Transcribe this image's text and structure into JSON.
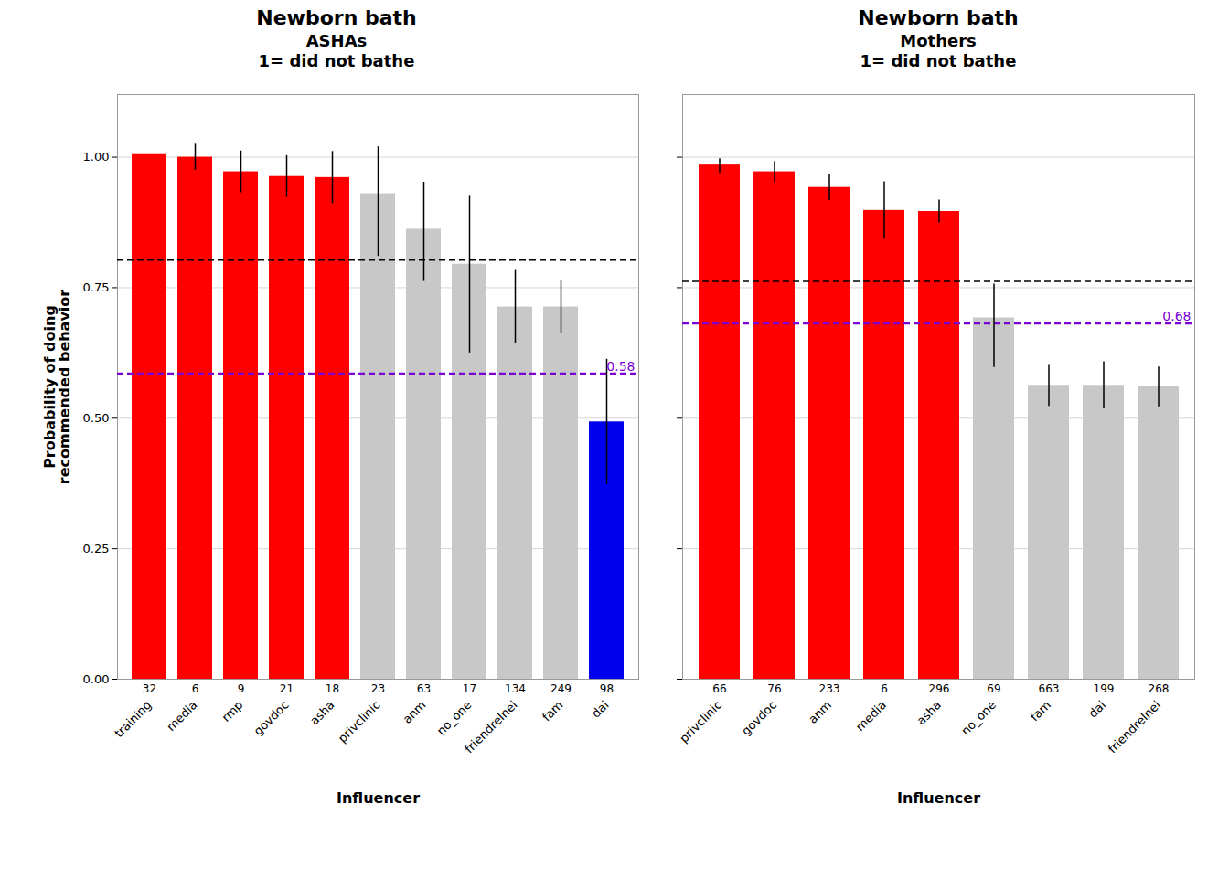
{
  "chart_data": [
    {
      "type": "bar",
      "title": "Newborn bath",
      "subtitle": "ASHAs\n1= did not bathe",
      "x_label": "Influencer",
      "y_label": "Probability of doing\nrecommended behavior",
      "categories": [
        "training",
        "media",
        "rmp",
        "govdoc",
        "asha",
        "privclinic",
        "anm",
        "no_one",
        "friendrelnei",
        "fam",
        "dai"
      ],
      "values": [
        1.005,
        1.0,
        0.972,
        0.963,
        0.961,
        0.93,
        0.862,
        0.795,
        0.713,
        0.713,
        0.493
      ],
      "error_low": [
        0.0,
        0.025,
        0.04,
        0.04,
        0.05,
        0.12,
        0.1,
        0.17,
        0.07,
        0.05,
        0.12
      ],
      "error_high": [
        0.0,
        0.025,
        0.04,
        0.04,
        0.05,
        0.09,
        0.09,
        0.13,
        0.07,
        0.05,
        0.12
      ],
      "n": [
        32,
        6,
        9,
        21,
        18,
        23,
        63,
        17,
        134,
        249,
        98
      ],
      "colors": [
        "#FF0000",
        "#FF0000",
        "#FF0000",
        "#FF0000",
        "#FF0000",
        "#C8C8C8",
        "#C8C8C8",
        "#C8C8C8",
        "#C8C8C8",
        "#C8C8C8",
        "#0000EE"
      ],
      "reference_lines": [
        {
          "value": 0.803,
          "color": "black",
          "line_style": "dashed"
        },
        {
          "value": 0.585,
          "label": "0.58",
          "color": "#7B00D4",
          "line_style": "dashed"
        }
      ],
      "ylim": [
        0,
        1.12
      ],
      "yticks": [
        {
          "value": 0,
          "label": "0.00"
        },
        {
          "value": 0.25,
          "label": "0.25"
        },
        {
          "value": 0.5,
          "label": "0.50"
        },
        {
          "value": 0.75,
          "label": "0.75"
        },
        {
          "value": 1,
          "label": "1.00"
        }
      ],
      "grid": true
    },
    {
      "type": "bar",
      "title": "Newborn bath",
      "subtitle": "Mothers\n1= did not bathe",
      "x_label": "Influencer",
      "categories": [
        "privclinic",
        "govdoc",
        "anm",
        "media",
        "asha",
        "no_one",
        "fam",
        "dai",
        "friendrelnei"
      ],
      "values": [
        0.985,
        0.972,
        0.942,
        0.898,
        0.896,
        0.692,
        0.563,
        0.563,
        0.56
      ],
      "error_low": [
        0.015,
        0.02,
        0.025,
        0.055,
        0.022,
        0.095,
        0.04,
        0.045,
        0.038
      ],
      "error_high": [
        0.012,
        0.02,
        0.025,
        0.055,
        0.022,
        0.065,
        0.04,
        0.045,
        0.038
      ],
      "n": [
        66,
        76,
        233,
        6,
        296,
        69,
        663,
        199,
        268
      ],
      "colors": [
        "#FF0000",
        "#FF0000",
        "#FF0000",
        "#FF0000",
        "#FF0000",
        "#C8C8C8",
        "#C8C8C8",
        "#C8C8C8",
        "#C8C8C8"
      ],
      "reference_lines": [
        {
          "value": 0.762,
          "color": "black",
          "line_style": "dashed"
        },
        {
          "value": 0.682,
          "label": "0.68",
          "color": "#7B00D4",
          "line_style": "dashed"
        }
      ],
      "ylim": [
        0,
        1.12
      ],
      "yticks": [
        {
          "value": 0,
          "label": "0.00"
        },
        {
          "value": 0.25,
          "label": "0.25"
        },
        {
          "value": 0.5,
          "label": "0.50"
        },
        {
          "value": 0.75,
          "label": "0.75"
        },
        {
          "value": 1,
          "label": "1.00"
        }
      ],
      "grid": true,
      "tick_labels": "x"
    }
  ]
}
